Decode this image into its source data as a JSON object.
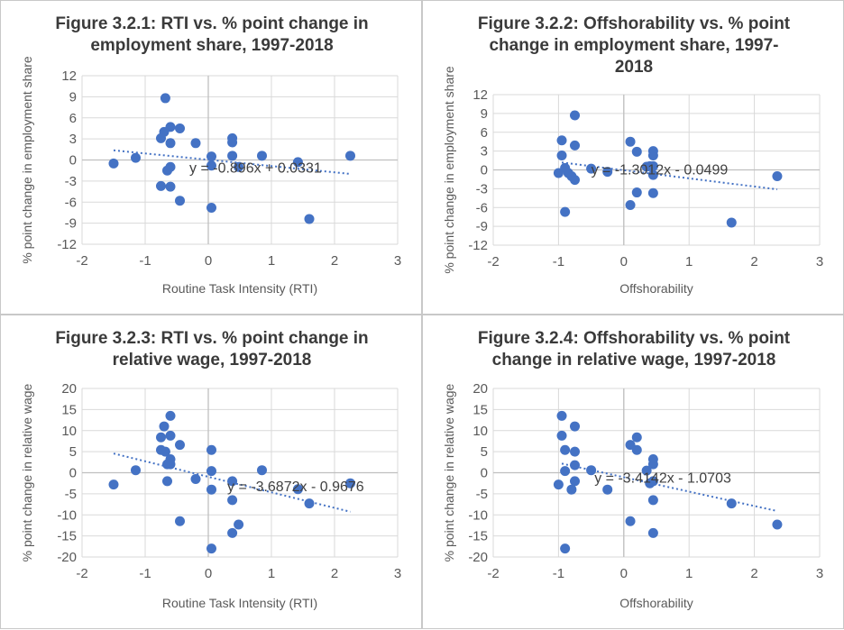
{
  "colors": {
    "marker": "#4472c4",
    "trend": "#4472c4",
    "grid": "#d9d9d9",
    "axis": "#bfbfbf",
    "text": "#595959",
    "title": "#3a3a3a"
  },
  "chart_data": [
    {
      "type": "scatter",
      "title_lines": [
        "Figure 3.2.1: RTI vs. % point change in",
        "employment share, 1997-2018"
      ],
      "xlabel": "Routine Task Intensity (RTI)",
      "ylabel": "% point change in employment share",
      "xlim": [
        -2,
        3
      ],
      "ylim": [
        -12,
        12
      ],
      "xticks": [
        -2,
        -1,
        0,
        1,
        2,
        3
      ],
      "yticks": [
        -12,
        -9,
        -6,
        -3,
        0,
        3,
        6,
        9,
        12
      ],
      "grid": true,
      "trendline": {
        "equation": "y = -0.896x + 0.0331",
        "slope": -0.896,
        "intercept": 0.0331,
        "x_range": [
          -1.5,
          2.25
        ]
      },
      "points": [
        [
          -1.5,
          -0.5
        ],
        [
          -1.15,
          0.3
        ],
        [
          -0.75,
          3.1
        ],
        [
          -0.7,
          4.0
        ],
        [
          -0.68,
          8.8
        ],
        [
          -0.6,
          4.7
        ],
        [
          -0.6,
          2.4
        ],
        [
          -0.45,
          4.5
        ],
        [
          -0.2,
          2.4
        ],
        [
          -0.75,
          -3.7
        ],
        [
          -0.6,
          -3.8
        ],
        [
          -0.45,
          -5.8
        ],
        [
          -0.65,
          -1.5
        ],
        [
          -0.6,
          -1.0
        ],
        [
          0.05,
          0.5
        ],
        [
          0.05,
          -0.8
        ],
        [
          0.05,
          -6.8
        ],
        [
          0.38,
          3.1
        ],
        [
          0.38,
          2.5
        ],
        [
          0.38,
          0.6
        ],
        [
          0.48,
          -1.0
        ],
        [
          0.85,
          0.6
        ],
        [
          1.42,
          -0.3
        ],
        [
          1.6,
          -8.4
        ],
        [
          2.25,
          0.6
        ]
      ]
    },
    {
      "type": "scatter",
      "title_lines": [
        "Figure 3.2.2: Offshorability vs. % point",
        "change in employment share, 1997-",
        "2018"
      ],
      "xlabel": "Offshorability",
      "ylabel": "% point change in employment share",
      "xlim": [
        -2,
        3
      ],
      "ylim": [
        -12,
        12
      ],
      "xticks": [
        -2,
        -1,
        0,
        1,
        2,
        3
      ],
      "yticks": [
        -12,
        -9,
        -6,
        -3,
        0,
        3,
        6,
        9,
        12
      ],
      "grid": true,
      "trendline": {
        "equation": "y = -1.3012x - 0.0499",
        "slope": -1.3012,
        "intercept": -0.0499,
        "x_range": [
          -0.95,
          2.35
        ]
      },
      "points": [
        [
          -0.95,
          4.7
        ],
        [
          -0.95,
          2.3
        ],
        [
          -1.0,
          -0.5
        ],
        [
          -0.9,
          0.3
        ],
        [
          -0.85,
          -0.5
        ],
        [
          -0.8,
          -1.0
        ],
        [
          -0.75,
          -1.6
        ],
        [
          -0.75,
          3.9
        ],
        [
          -0.75,
          8.7
        ],
        [
          -0.9,
          -6.7
        ],
        [
          -0.5,
          0.2
        ],
        [
          -0.25,
          -0.3
        ],
        [
          0.1,
          4.5
        ],
        [
          0.1,
          -5.6
        ],
        [
          0.2,
          2.9
        ],
        [
          0.2,
          -3.6
        ],
        [
          0.35,
          0.5
        ],
        [
          0.4,
          0.6
        ],
        [
          0.45,
          3.0
        ],
        [
          0.45,
          2.3
        ],
        [
          0.45,
          0.6
        ],
        [
          0.45,
          -0.8
        ],
        [
          0.45,
          -3.7
        ],
        [
          1.65,
          -8.4
        ],
        [
          2.35,
          -1.0
        ]
      ]
    },
    {
      "type": "scatter",
      "title_lines": [
        "Figure 3.2.3: RTI vs. % point change in",
        "relative wage, 1997-2018"
      ],
      "xlabel": "Routine Task Intensity (RTI)",
      "ylabel": "% point change in relative wage",
      "xlim": [
        -2,
        3
      ],
      "ylim": [
        -20,
        20
      ],
      "xticks": [
        -2,
        -1,
        0,
        1,
        2,
        3
      ],
      "yticks": [
        -20,
        -15,
        -10,
        -5,
        0,
        5,
        10,
        15,
        20
      ],
      "grid": true,
      "trendline": {
        "equation": "y = -3.6872x - 0.9676",
        "slope": -3.6872,
        "intercept": -0.9676,
        "x_range": [
          -1.5,
          2.25
        ]
      },
      "points": [
        [
          -1.5,
          -2.8
        ],
        [
          -1.15,
          0.6
        ],
        [
          -0.75,
          8.4
        ],
        [
          -0.75,
          5.4
        ],
        [
          -0.7,
          11.0
        ],
        [
          -0.68,
          5.0
        ],
        [
          -0.65,
          2.0
        ],
        [
          -0.65,
          -2.0
        ],
        [
          -0.6,
          13.5
        ],
        [
          -0.6,
          8.8
        ],
        [
          -0.6,
          3.2
        ],
        [
          -0.6,
          2.0
        ],
        [
          -0.45,
          6.6
        ],
        [
          -0.45,
          -11.5
        ],
        [
          -0.2,
          -1.5
        ],
        [
          0.05,
          5.4
        ],
        [
          0.05,
          0.4
        ],
        [
          0.05,
          -4.0
        ],
        [
          0.05,
          -18.0
        ],
        [
          0.38,
          -2.0
        ],
        [
          0.38,
          -6.5
        ],
        [
          0.38,
          -14.3
        ],
        [
          0.48,
          -12.3
        ],
        [
          0.85,
          0.6
        ],
        [
          1.42,
          -3.9
        ],
        [
          1.6,
          -7.3
        ],
        [
          2.25,
          -2.5
        ]
      ]
    },
    {
      "type": "scatter",
      "title_lines": [
        "Figure 3.2.4: Offshorability vs. % point",
        "change in relative wage, 1997-2018"
      ],
      "xlabel": "Offshorability",
      "ylabel": "% point change in relative wage",
      "xlim": [
        -2,
        3
      ],
      "ylim": [
        -20,
        20
      ],
      "xticks": [
        -2,
        -1,
        0,
        1,
        2,
        3
      ],
      "yticks": [
        -20,
        -15,
        -10,
        -5,
        0,
        5,
        10,
        15,
        20
      ],
      "grid": true,
      "trendline": {
        "equation": "y = -3.4142x - 1.0703",
        "slope": -3.4142,
        "intercept": -1.0703,
        "x_range": [
          -0.95,
          2.35
        ]
      },
      "points": [
        [
          -1.0,
          -2.8
        ],
        [
          -0.95,
          13.5
        ],
        [
          -0.95,
          8.8
        ],
        [
          -0.9,
          5.4
        ],
        [
          -0.9,
          0.4
        ],
        [
          -0.9,
          -18.0
        ],
        [
          -0.75,
          11.0
        ],
        [
          -0.75,
          5.0
        ],
        [
          -0.75,
          1.8
        ],
        [
          -0.75,
          -2.0
        ],
        [
          -0.8,
          -4.0
        ],
        [
          -0.5,
          0.6
        ],
        [
          -0.25,
          -4.0
        ],
        [
          0.1,
          6.6
        ],
        [
          0.1,
          -11.5
        ],
        [
          0.2,
          8.4
        ],
        [
          0.2,
          5.4
        ],
        [
          0.35,
          0.5
        ],
        [
          0.4,
          -2.5
        ],
        [
          0.45,
          3.2
        ],
        [
          0.45,
          2.0
        ],
        [
          0.45,
          -2.0
        ],
        [
          0.45,
          -6.5
        ],
        [
          0.45,
          -14.3
        ],
        [
          1.65,
          -7.3
        ],
        [
          2.35,
          -12.3
        ]
      ]
    }
  ]
}
